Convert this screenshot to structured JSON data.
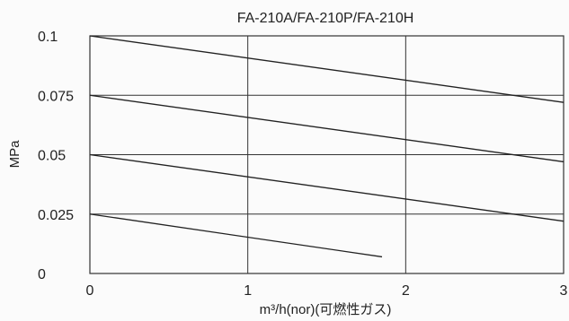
{
  "chart_data": {
    "type": "line",
    "title": "FA-210A/FA-210P/FA-210H",
    "xlabel": "m³/h(nor)(可燃性ガス)",
    "ylabel": "MPa",
    "xlim": [
      0,
      3
    ],
    "ylim": [
      0,
      0.1
    ],
    "x_ticks": [
      {
        "value": 0,
        "label": "0"
      },
      {
        "value": 1,
        "label": "1"
      },
      {
        "value": 2,
        "label": "2"
      },
      {
        "value": 3,
        "label": "3"
      }
    ],
    "y_ticks": [
      {
        "value": 0,
        "label": "0"
      },
      {
        "value": 0.025,
        "label": "0.025"
      },
      {
        "value": 0.05,
        "label": "0.05"
      },
      {
        "value": 0.075,
        "label": "0.075"
      },
      {
        "value": 0.1,
        "label": "0.1"
      }
    ],
    "grid": true,
    "legend": "none",
    "line_color": "#222222",
    "grid_color": "#333333",
    "series": [
      {
        "x": [
          0,
          3
        ],
        "y": [
          0.1,
          0.072
        ]
      },
      {
        "x": [
          0,
          3
        ],
        "y": [
          0.075,
          0.047
        ]
      },
      {
        "x": [
          0,
          3
        ],
        "y": [
          0.05,
          0.022
        ]
      },
      {
        "x": [
          0,
          1.85
        ],
        "y": [
          0.025,
          0.007
        ]
      }
    ]
  }
}
